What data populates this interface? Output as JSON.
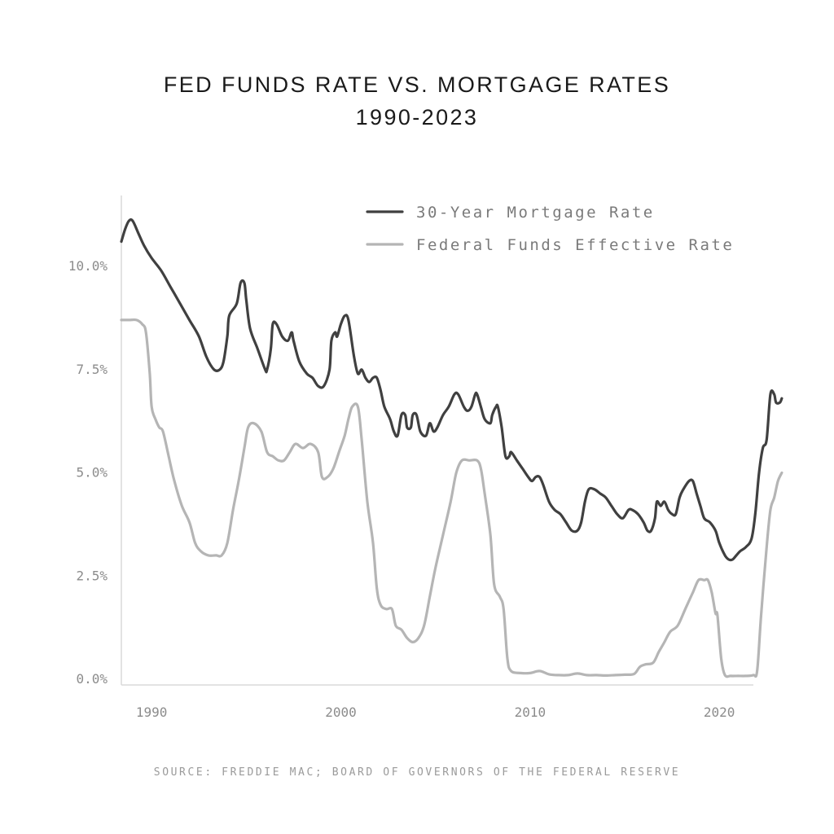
{
  "chart_data": {
    "type": "line",
    "title": "FED FUNDS RATE VS. MORTGAGE RATES",
    "subtitle": "1990-2023",
    "source": "SOURCE: FREDDIE MAC; BOARD OF GOVERNORS OF THE FEDERAL RESERVE",
    "xlabel": "",
    "ylabel": "",
    "xlim": [
      1988.4,
      2021.8
    ],
    "ylim": [
      0,
      12
    ],
    "x_ticks": [
      {
        "value": 1990,
        "label": "1990"
      },
      {
        "value": 2000,
        "label": "2000"
      },
      {
        "value": 2010,
        "label": "2010"
      },
      {
        "value": 2020,
        "label": "2020"
      }
    ],
    "y_ticks": [
      {
        "value": 0,
        "label": "0.0%"
      },
      {
        "value": 2.5,
        "label": "2.5%"
      },
      {
        "value": 5,
        "label": "5.0%"
      },
      {
        "value": 7.5,
        "label": "7.5%"
      },
      {
        "value": 10,
        "label": "10.0%"
      }
    ],
    "grid": false,
    "legend_position": "top-right",
    "colors": {
      "mortgage": "#404040",
      "fed": "#b5b5b5",
      "axis": "#dadada"
    },
    "series": [
      {
        "name": "30-Year Mortgage Rate",
        "key": "mortgage",
        "points": [
          [
            1988.4,
            10.6
          ],
          [
            1988.6,
            10.9
          ],
          [
            1988.8,
            11.1
          ],
          [
            1989.0,
            11.1
          ],
          [
            1989.3,
            10.8
          ],
          [
            1989.6,
            10.5
          ],
          [
            1990.0,
            10.2
          ],
          [
            1990.5,
            9.9
          ],
          [
            1991.0,
            9.5
          ],
          [
            1991.5,
            9.1
          ],
          [
            1992.0,
            8.7
          ],
          [
            1992.5,
            8.3
          ],
          [
            1992.9,
            7.8
          ],
          [
            1993.3,
            7.5
          ],
          [
            1993.6,
            7.5
          ],
          [
            1993.8,
            7.7
          ],
          [
            1994.0,
            8.3
          ],
          [
            1994.1,
            8.8
          ],
          [
            1994.5,
            9.1
          ],
          [
            1994.7,
            9.6
          ],
          [
            1994.9,
            9.6
          ],
          [
            1995.0,
            9.2
          ],
          [
            1995.2,
            8.5
          ],
          [
            1995.6,
            8.0
          ],
          [
            1996.0,
            7.5
          ],
          [
            1996.1,
            7.5
          ],
          [
            1996.3,
            8.0
          ],
          [
            1996.4,
            8.6
          ],
          [
            1996.6,
            8.6
          ],
          [
            1996.9,
            8.3
          ],
          [
            1997.2,
            8.2
          ],
          [
            1997.4,
            8.4
          ],
          [
            1997.5,
            8.2
          ],
          [
            1997.8,
            7.7
          ],
          [
            1998.2,
            7.4
          ],
          [
            1998.5,
            7.3
          ],
          [
            1998.8,
            7.1
          ],
          [
            1999.1,
            7.1
          ],
          [
            1999.4,
            7.5
          ],
          [
            1999.5,
            8.2
          ],
          [
            1999.7,
            8.4
          ],
          [
            1999.8,
            8.3
          ],
          [
            2000.0,
            8.6
          ],
          [
            2000.2,
            8.8
          ],
          [
            2000.4,
            8.7
          ],
          [
            2000.7,
            7.8
          ],
          [
            2000.9,
            7.4
          ],
          [
            2001.1,
            7.5
          ],
          [
            2001.3,
            7.3
          ],
          [
            2001.5,
            7.2
          ],
          [
            2001.7,
            7.3
          ],
          [
            2001.9,
            7.3
          ],
          [
            2002.1,
            7.0
          ],
          [
            2002.3,
            6.6
          ],
          [
            2002.6,
            6.3
          ],
          [
            2002.8,
            6.0
          ],
          [
            2003.0,
            5.9
          ],
          [
            2003.2,
            6.4
          ],
          [
            2003.4,
            6.4
          ],
          [
            2003.5,
            6.1
          ],
          [
            2003.7,
            6.1
          ],
          [
            2003.8,
            6.4
          ],
          [
            2004.0,
            6.4
          ],
          [
            2004.2,
            6.0
          ],
          [
            2004.5,
            5.9
          ],
          [
            2004.7,
            6.2
          ],
          [
            2004.9,
            6.0
          ],
          [
            2005.1,
            6.1
          ],
          [
            2005.4,
            6.4
          ],
          [
            2005.7,
            6.6
          ],
          [
            2006.0,
            6.9
          ],
          [
            2006.2,
            6.9
          ],
          [
            2006.5,
            6.6
          ],
          [
            2006.7,
            6.5
          ],
          [
            2006.9,
            6.6
          ],
          [
            2007.1,
            6.9
          ],
          [
            2007.2,
            6.9
          ],
          [
            2007.4,
            6.6
          ],
          [
            2007.6,
            6.3
          ],
          [
            2007.9,
            6.2
          ],
          [
            2008.0,
            6.4
          ],
          [
            2008.2,
            6.6
          ],
          [
            2008.3,
            6.6
          ],
          [
            2008.5,
            6.1
          ],
          [
            2008.7,
            5.4
          ],
          [
            2008.9,
            5.4
          ],
          [
            2009.0,
            5.5
          ],
          [
            2009.3,
            5.3
          ],
          [
            2009.6,
            5.1
          ],
          [
            2009.9,
            4.9
          ],
          [
            2010.1,
            4.8
          ],
          [
            2010.3,
            4.9
          ],
          [
            2010.5,
            4.9
          ],
          [
            2010.7,
            4.7
          ],
          [
            2011.0,
            4.3
          ],
          [
            2011.3,
            4.1
          ],
          [
            2011.6,
            4.0
          ],
          [
            2011.9,
            3.8
          ],
          [
            2012.2,
            3.6
          ],
          [
            2012.5,
            3.6
          ],
          [
            2012.7,
            3.8
          ],
          [
            2012.9,
            4.3
          ],
          [
            2013.1,
            4.6
          ],
          [
            2013.4,
            4.6
          ],
          [
            2013.7,
            4.5
          ],
          [
            2014.0,
            4.4
          ],
          [
            2014.3,
            4.2
          ],
          [
            2014.6,
            4.0
          ],
          [
            2014.9,
            3.9
          ],
          [
            2015.2,
            4.1
          ],
          [
            2015.4,
            4.1
          ],
          [
            2015.7,
            4.0
          ],
          [
            2016.0,
            3.8
          ],
          [
            2016.2,
            3.6
          ],
          [
            2016.4,
            3.6
          ],
          [
            2016.6,
            3.9
          ],
          [
            2016.7,
            4.3
          ],
          [
            2016.9,
            4.2
          ],
          [
            2017.1,
            4.3
          ],
          [
            2017.3,
            4.1
          ],
          [
            2017.5,
            4.0
          ],
          [
            2017.7,
            4.0
          ],
          [
            2017.9,
            4.4
          ],
          [
            2018.1,
            4.6
          ],
          [
            2018.4,
            4.8
          ],
          [
            2018.6,
            4.8
          ],
          [
            2018.8,
            4.5
          ],
          [
            2019.0,
            4.2
          ],
          [
            2019.2,
            3.9
          ],
          [
            2019.5,
            3.8
          ],
          [
            2019.8,
            3.6
          ],
          [
            2020.0,
            3.3
          ],
          [
            2020.3,
            3.0
          ],
          [
            2020.5,
            2.9
          ],
          [
            2020.7,
            2.9
          ],
          [
            2020.9,
            3.0
          ],
          [
            2021.1,
            3.1
          ],
          [
            2021.4,
            3.2
          ],
          [
            2021.7,
            3.4
          ],
          [
            2021.9,
            4.0
          ],
          [
            2022.1,
            5.0
          ],
          [
            2022.3,
            5.6
          ],
          [
            2022.5,
            5.8
          ],
          [
            2022.7,
            6.9
          ],
          [
            2022.9,
            6.9
          ],
          [
            2023.0,
            6.7
          ],
          [
            2023.2,
            6.7
          ],
          [
            2023.3,
            6.8
          ]
        ]
      },
      {
        "name": "Federal Funds Effective Rate",
        "key": "fed",
        "points": [
          [
            1988.4,
            8.7
          ],
          [
            1988.8,
            8.7
          ],
          [
            1989.2,
            8.7
          ],
          [
            1989.5,
            8.6
          ],
          [
            1989.7,
            8.4
          ],
          [
            1989.9,
            7.4
          ],
          [
            1990.0,
            6.6
          ],
          [
            1990.2,
            6.3
          ],
          [
            1990.4,
            6.1
          ],
          [
            1990.6,
            6.0
          ],
          [
            1990.9,
            5.4
          ],
          [
            1991.2,
            4.8
          ],
          [
            1991.6,
            4.2
          ],
          [
            1992.0,
            3.8
          ],
          [
            1992.3,
            3.3
          ],
          [
            1992.6,
            3.1
          ],
          [
            1993.0,
            3.0
          ],
          [
            1993.4,
            3.0
          ],
          [
            1993.7,
            3.0
          ],
          [
            1994.0,
            3.3
          ],
          [
            1994.3,
            4.1
          ],
          [
            1994.6,
            4.8
          ],
          [
            1994.9,
            5.6
          ],
          [
            1995.1,
            6.1
          ],
          [
            1995.4,
            6.2
          ],
          [
            1995.8,
            6.0
          ],
          [
            1996.1,
            5.5
          ],
          [
            1996.4,
            5.4
          ],
          [
            1996.7,
            5.3
          ],
          [
            1997.0,
            5.3
          ],
          [
            1997.3,
            5.5
          ],
          [
            1997.6,
            5.7
          ],
          [
            1998.0,
            5.6
          ],
          [
            1998.4,
            5.7
          ],
          [
            1998.8,
            5.5
          ],
          [
            1999.0,
            4.9
          ],
          [
            1999.3,
            4.9
          ],
          [
            1999.6,
            5.1
          ],
          [
            1999.9,
            5.5
          ],
          [
            2000.2,
            5.9
          ],
          [
            2000.4,
            6.3
          ],
          [
            2000.6,
            6.6
          ],
          [
            2000.9,
            6.6
          ],
          [
            2001.1,
            5.8
          ],
          [
            2001.4,
            4.3
          ],
          [
            2001.7,
            3.3
          ],
          [
            2001.9,
            2.2
          ],
          [
            2002.1,
            1.8
          ],
          [
            2002.4,
            1.7
          ],
          [
            2002.7,
            1.7
          ],
          [
            2002.9,
            1.3
          ],
          [
            2003.2,
            1.2
          ],
          [
            2003.5,
            1.0
          ],
          [
            2003.8,
            0.9
          ],
          [
            2004.1,
            1.0
          ],
          [
            2004.4,
            1.3
          ],
          [
            2004.7,
            2.0
          ],
          [
            2005.0,
            2.7
          ],
          [
            2005.4,
            3.5
          ],
          [
            2005.8,
            4.3
          ],
          [
            2006.1,
            5.0
          ],
          [
            2006.4,
            5.3
          ],
          [
            2006.8,
            5.3
          ],
          [
            2007.2,
            5.3
          ],
          [
            2007.4,
            5.1
          ],
          [
            2007.6,
            4.5
          ],
          [
            2007.9,
            3.5
          ],
          [
            2008.1,
            2.3
          ],
          [
            2008.4,
            2.0
          ],
          [
            2008.6,
            1.7
          ],
          [
            2008.8,
            0.5
          ],
          [
            2009.0,
            0.2
          ],
          [
            2009.5,
            0.15
          ],
          [
            2010.0,
            0.15
          ],
          [
            2010.5,
            0.2
          ],
          [
            2011.0,
            0.12
          ],
          [
            2011.5,
            0.1
          ],
          [
            2012.0,
            0.1
          ],
          [
            2012.5,
            0.14
          ],
          [
            2013.0,
            0.1
          ],
          [
            2013.5,
            0.1
          ],
          [
            2014.0,
            0.09
          ],
          [
            2014.5,
            0.1
          ],
          [
            2015.0,
            0.11
          ],
          [
            2015.5,
            0.13
          ],
          [
            2015.8,
            0.3
          ],
          [
            2016.1,
            0.36
          ],
          [
            2016.5,
            0.4
          ],
          [
            2016.8,
            0.66
          ],
          [
            2017.1,
            0.9
          ],
          [
            2017.4,
            1.15
          ],
          [
            2017.8,
            1.3
          ],
          [
            2018.2,
            1.7
          ],
          [
            2018.6,
            2.1
          ],
          [
            2018.9,
            2.4
          ],
          [
            2019.2,
            2.4
          ],
          [
            2019.4,
            2.4
          ],
          [
            2019.6,
            2.1
          ],
          [
            2019.8,
            1.6
          ],
          [
            2019.9,
            1.55
          ],
          [
            2020.1,
            0.5
          ],
          [
            2020.3,
            0.1
          ],
          [
            2020.6,
            0.08
          ],
          [
            2021.0,
            0.08
          ],
          [
            2021.4,
            0.08
          ],
          [
            2021.8,
            0.1
          ],
          [
            2022.0,
            0.2
          ],
          [
            2022.2,
            1.5
          ],
          [
            2022.5,
            3.2
          ],
          [
            2022.7,
            4.1
          ],
          [
            2022.9,
            4.4
          ],
          [
            2023.1,
            4.8
          ],
          [
            2023.3,
            5.0
          ]
        ]
      }
    ]
  }
}
